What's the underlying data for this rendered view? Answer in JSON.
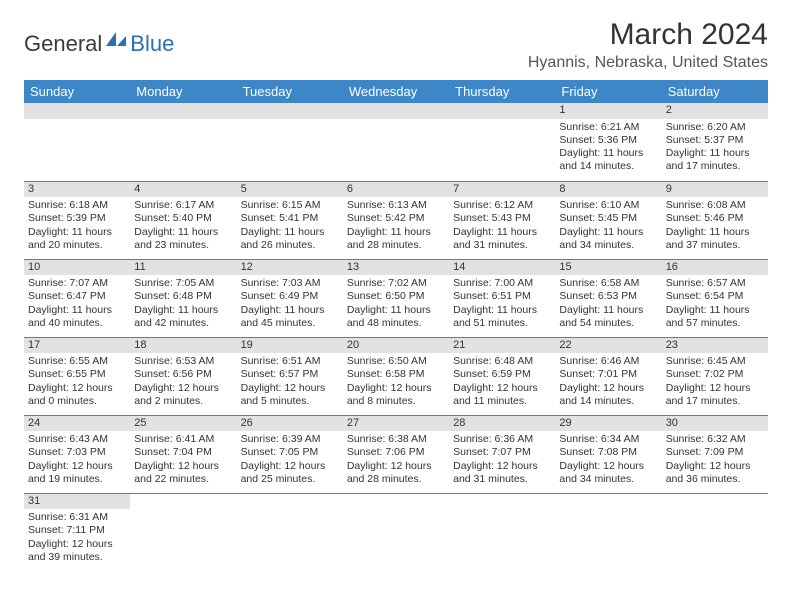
{
  "logo": {
    "part1": "General",
    "part2": "Blue"
  },
  "title": "March 2024",
  "location": "Hyannis, Nebraska, United States",
  "colors": {
    "header_bg": "#3d87c9",
    "header_text": "#ffffff",
    "daynum_bg": "#e2e2e2",
    "border": "#3d87c9",
    "logo_blue": "#2a6fb5"
  },
  "weekdays": [
    "Sunday",
    "Monday",
    "Tuesday",
    "Wednesday",
    "Thursday",
    "Friday",
    "Saturday"
  ],
  "weeks": [
    [
      {
        "empty": true
      },
      {
        "empty": true
      },
      {
        "empty": true
      },
      {
        "empty": true
      },
      {
        "empty": true
      },
      {
        "day": "1",
        "sunrise": "Sunrise: 6:21 AM",
        "sunset": "Sunset: 5:36 PM",
        "daylight1": "Daylight: 11 hours",
        "daylight2": "and 14 minutes."
      },
      {
        "day": "2",
        "sunrise": "Sunrise: 6:20 AM",
        "sunset": "Sunset: 5:37 PM",
        "daylight1": "Daylight: 11 hours",
        "daylight2": "and 17 minutes."
      }
    ],
    [
      {
        "day": "3",
        "sunrise": "Sunrise: 6:18 AM",
        "sunset": "Sunset: 5:39 PM",
        "daylight1": "Daylight: 11 hours",
        "daylight2": "and 20 minutes."
      },
      {
        "day": "4",
        "sunrise": "Sunrise: 6:17 AM",
        "sunset": "Sunset: 5:40 PM",
        "daylight1": "Daylight: 11 hours",
        "daylight2": "and 23 minutes."
      },
      {
        "day": "5",
        "sunrise": "Sunrise: 6:15 AM",
        "sunset": "Sunset: 5:41 PM",
        "daylight1": "Daylight: 11 hours",
        "daylight2": "and 26 minutes."
      },
      {
        "day": "6",
        "sunrise": "Sunrise: 6:13 AM",
        "sunset": "Sunset: 5:42 PM",
        "daylight1": "Daylight: 11 hours",
        "daylight2": "and 28 minutes."
      },
      {
        "day": "7",
        "sunrise": "Sunrise: 6:12 AM",
        "sunset": "Sunset: 5:43 PM",
        "daylight1": "Daylight: 11 hours",
        "daylight2": "and 31 minutes."
      },
      {
        "day": "8",
        "sunrise": "Sunrise: 6:10 AM",
        "sunset": "Sunset: 5:45 PM",
        "daylight1": "Daylight: 11 hours",
        "daylight2": "and 34 minutes."
      },
      {
        "day": "9",
        "sunrise": "Sunrise: 6:08 AM",
        "sunset": "Sunset: 5:46 PM",
        "daylight1": "Daylight: 11 hours",
        "daylight2": "and 37 minutes."
      }
    ],
    [
      {
        "day": "10",
        "sunrise": "Sunrise: 7:07 AM",
        "sunset": "Sunset: 6:47 PM",
        "daylight1": "Daylight: 11 hours",
        "daylight2": "and 40 minutes."
      },
      {
        "day": "11",
        "sunrise": "Sunrise: 7:05 AM",
        "sunset": "Sunset: 6:48 PM",
        "daylight1": "Daylight: 11 hours",
        "daylight2": "and 42 minutes."
      },
      {
        "day": "12",
        "sunrise": "Sunrise: 7:03 AM",
        "sunset": "Sunset: 6:49 PM",
        "daylight1": "Daylight: 11 hours",
        "daylight2": "and 45 minutes."
      },
      {
        "day": "13",
        "sunrise": "Sunrise: 7:02 AM",
        "sunset": "Sunset: 6:50 PM",
        "daylight1": "Daylight: 11 hours",
        "daylight2": "and 48 minutes."
      },
      {
        "day": "14",
        "sunrise": "Sunrise: 7:00 AM",
        "sunset": "Sunset: 6:51 PM",
        "daylight1": "Daylight: 11 hours",
        "daylight2": "and 51 minutes."
      },
      {
        "day": "15",
        "sunrise": "Sunrise: 6:58 AM",
        "sunset": "Sunset: 6:53 PM",
        "daylight1": "Daylight: 11 hours",
        "daylight2": "and 54 minutes."
      },
      {
        "day": "16",
        "sunrise": "Sunrise: 6:57 AM",
        "sunset": "Sunset: 6:54 PM",
        "daylight1": "Daylight: 11 hours",
        "daylight2": "and 57 minutes."
      }
    ],
    [
      {
        "day": "17",
        "sunrise": "Sunrise: 6:55 AM",
        "sunset": "Sunset: 6:55 PM",
        "daylight1": "Daylight: 12 hours",
        "daylight2": "and 0 minutes."
      },
      {
        "day": "18",
        "sunrise": "Sunrise: 6:53 AM",
        "sunset": "Sunset: 6:56 PM",
        "daylight1": "Daylight: 12 hours",
        "daylight2": "and 2 minutes."
      },
      {
        "day": "19",
        "sunrise": "Sunrise: 6:51 AM",
        "sunset": "Sunset: 6:57 PM",
        "daylight1": "Daylight: 12 hours",
        "daylight2": "and 5 minutes."
      },
      {
        "day": "20",
        "sunrise": "Sunrise: 6:50 AM",
        "sunset": "Sunset: 6:58 PM",
        "daylight1": "Daylight: 12 hours",
        "daylight2": "and 8 minutes."
      },
      {
        "day": "21",
        "sunrise": "Sunrise: 6:48 AM",
        "sunset": "Sunset: 6:59 PM",
        "daylight1": "Daylight: 12 hours",
        "daylight2": "and 11 minutes."
      },
      {
        "day": "22",
        "sunrise": "Sunrise: 6:46 AM",
        "sunset": "Sunset: 7:01 PM",
        "daylight1": "Daylight: 12 hours",
        "daylight2": "and 14 minutes."
      },
      {
        "day": "23",
        "sunrise": "Sunrise: 6:45 AM",
        "sunset": "Sunset: 7:02 PM",
        "daylight1": "Daylight: 12 hours",
        "daylight2": "and 17 minutes."
      }
    ],
    [
      {
        "day": "24",
        "sunrise": "Sunrise: 6:43 AM",
        "sunset": "Sunset: 7:03 PM",
        "daylight1": "Daylight: 12 hours",
        "daylight2": "and 19 minutes."
      },
      {
        "day": "25",
        "sunrise": "Sunrise: 6:41 AM",
        "sunset": "Sunset: 7:04 PM",
        "daylight1": "Daylight: 12 hours",
        "daylight2": "and 22 minutes."
      },
      {
        "day": "26",
        "sunrise": "Sunrise: 6:39 AM",
        "sunset": "Sunset: 7:05 PM",
        "daylight1": "Daylight: 12 hours",
        "daylight2": "and 25 minutes."
      },
      {
        "day": "27",
        "sunrise": "Sunrise: 6:38 AM",
        "sunset": "Sunset: 7:06 PM",
        "daylight1": "Daylight: 12 hours",
        "daylight2": "and 28 minutes."
      },
      {
        "day": "28",
        "sunrise": "Sunrise: 6:36 AM",
        "sunset": "Sunset: 7:07 PM",
        "daylight1": "Daylight: 12 hours",
        "daylight2": "and 31 minutes."
      },
      {
        "day": "29",
        "sunrise": "Sunrise: 6:34 AM",
        "sunset": "Sunset: 7:08 PM",
        "daylight1": "Daylight: 12 hours",
        "daylight2": "and 34 minutes."
      },
      {
        "day": "30",
        "sunrise": "Sunrise: 6:32 AM",
        "sunset": "Sunset: 7:09 PM",
        "daylight1": "Daylight: 12 hours",
        "daylight2": "and 36 minutes."
      }
    ],
    [
      {
        "day": "31",
        "sunrise": "Sunrise: 6:31 AM",
        "sunset": "Sunset: 7:11 PM",
        "daylight1": "Daylight: 12 hours",
        "daylight2": "and 39 minutes."
      },
      {
        "empty": true
      },
      {
        "empty": true
      },
      {
        "empty": true
      },
      {
        "empty": true
      },
      {
        "empty": true
      },
      {
        "empty": true
      }
    ]
  ]
}
